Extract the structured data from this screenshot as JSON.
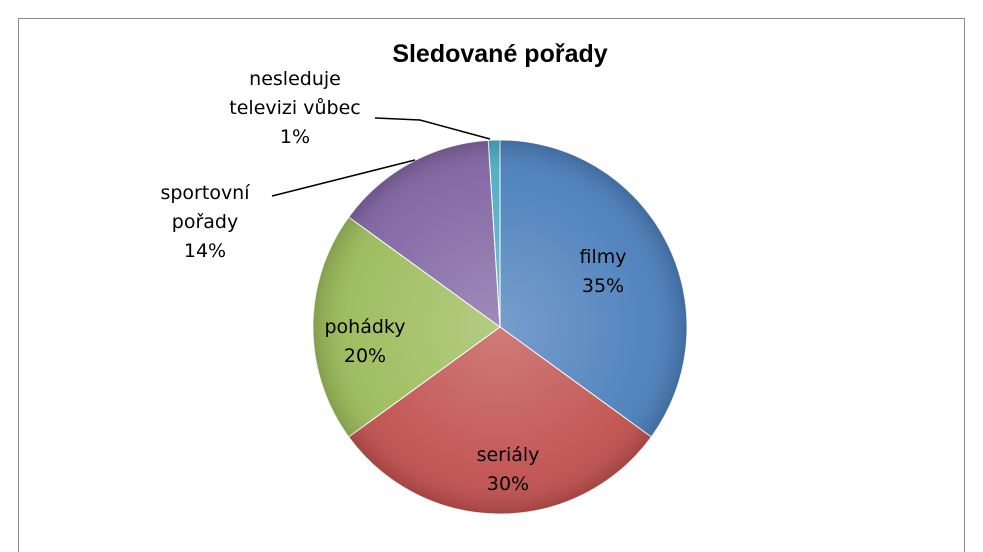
{
  "chart_data": {
    "type": "pie",
    "title": "Sledované pořady",
    "categories": [
      "filmy",
      "seriály",
      "pohádky",
      "sportovní pořady",
      "nesleduje televizi vůbec"
    ],
    "values": [
      35,
      30,
      20,
      14,
      1
    ],
    "value_labels": [
      "35%",
      "30%",
      "20%",
      "14%",
      "1%"
    ],
    "colors": [
      "#4a7ebb",
      "#c0504d",
      "#9bbb59",
      "#8064a2",
      "#4bacc6"
    ]
  }
}
